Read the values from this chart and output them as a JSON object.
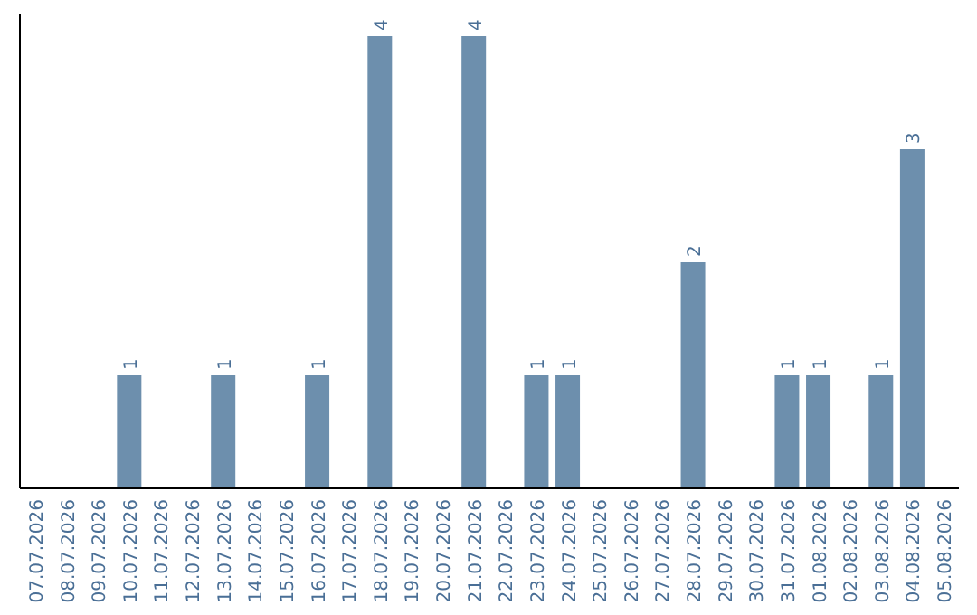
{
  "chart_data": {
    "type": "bar",
    "categories": [
      "07.07.2026",
      "08.07.2026",
      "09.07.2026",
      "10.07.2026",
      "11.07.2026",
      "12.07.2026",
      "13.07.2026",
      "14.07.2026",
      "15.07.2026",
      "16.07.2026",
      "17.07.2026",
      "18.07.2026",
      "19.07.2026",
      "20.07.2026",
      "21.07.2026",
      "22.07.2026",
      "23.07.2026",
      "24.07.2026",
      "25.07.2026",
      "26.07.2026",
      "27.07.2026",
      "28.07.2026",
      "29.07.2026",
      "30.07.2026",
      "31.07.2026",
      "01.08.2026",
      "02.08.2026",
      "03.08.2026",
      "04.08.2026",
      "05.08.2026"
    ],
    "values": [
      0,
      0,
      0,
      1,
      0,
      0,
      1,
      0,
      0,
      1,
      0,
      4,
      0,
      0,
      4,
      0,
      1,
      1,
      0,
      0,
      0,
      2,
      0,
      0,
      1,
      1,
      0,
      1,
      3,
      0
    ],
    "value_labels": [
      null,
      null,
      null,
      "1",
      null,
      null,
      "1",
      null,
      null,
      "1",
      null,
      "4",
      null,
      null,
      "4",
      null,
      "1",
      "1",
      null,
      null,
      null,
      "2",
      null,
      null,
      "1",
      "1",
      null,
      "1",
      "3",
      null
    ],
    "color": "#6d8fad"
  }
}
